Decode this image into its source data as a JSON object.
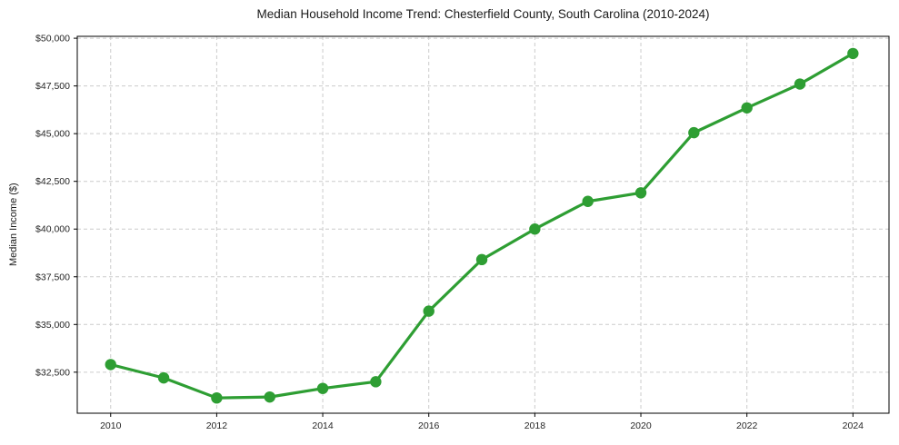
{
  "page": {
    "background": "#ffffff"
  },
  "chart_data": {
    "type": "line",
    "title": "Median Household Income Trend: Chesterfield County, South Carolina (2010-2024)",
    "xlabel": "",
    "ylabel": "Median Income ($)",
    "x": [
      2010,
      2011,
      2012,
      2013,
      2014,
      2015,
      2016,
      2017,
      2018,
      2019,
      2020,
      2021,
      2022,
      2023,
      2024
    ],
    "series": [
      {
        "name": "Median Household Income",
        "values": [
          32900,
          32200,
          31150,
          31200,
          31650,
          32000,
          35700,
          38400,
          40000,
          41450,
          41900,
          45050,
          46350,
          47600,
          49200
        ]
      }
    ],
    "xlim": [
      2009.37,
      2024.68
    ],
    "ylim": [
      30350,
      50100
    ],
    "xtick_values": [
      2010,
      2012,
      2014,
      2016,
      2018,
      2020,
      2022,
      2024
    ],
    "xtick_labels": [
      "2010",
      "2012",
      "2014",
      "2016",
      "2018",
      "2020",
      "2022",
      "2024"
    ],
    "ytick_values": [
      32500,
      35000,
      37500,
      40000,
      42500,
      45000,
      47500,
      50000
    ],
    "ytick_labels": [
      "$32,500",
      "$35,000",
      "$37,500",
      "$40,000",
      "$42,500",
      "$45,000",
      "$47,500",
      "$50,000"
    ],
    "grid": true,
    "grid_style": "dashed",
    "grid_color": "#cccccc",
    "line_color": "#2e9e33",
    "marker": "circle",
    "marker_color": "#2e9e33",
    "spine_color": "#000000",
    "legend": "none"
  }
}
